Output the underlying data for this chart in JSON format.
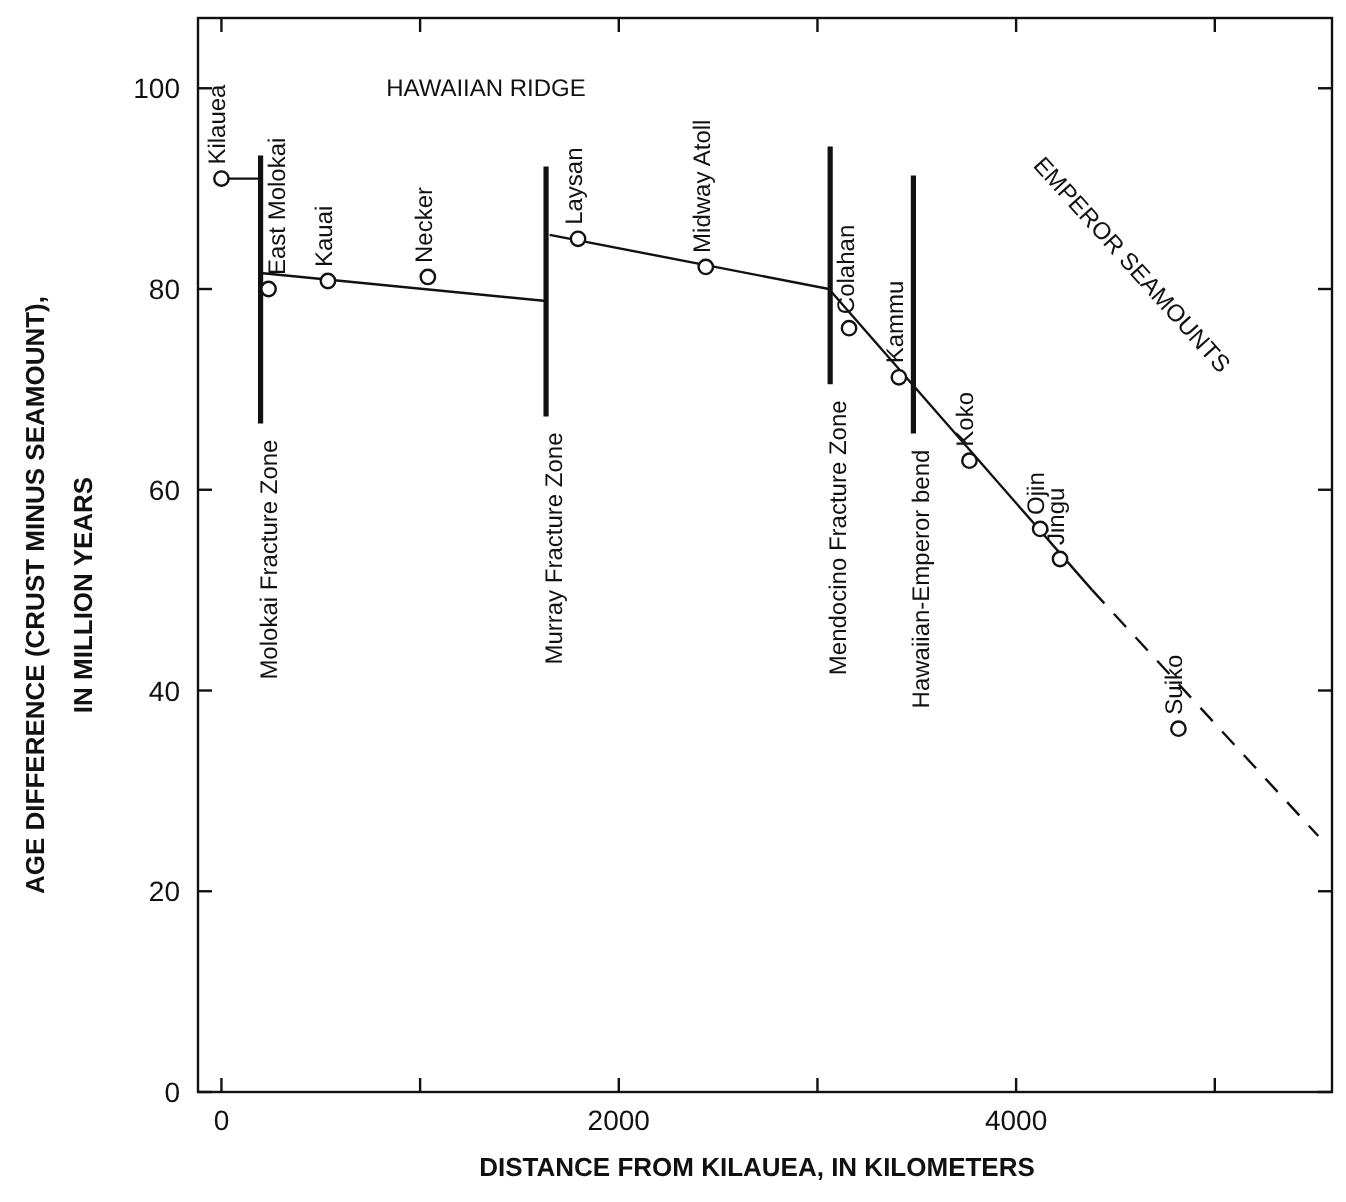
{
  "chart_data": {
    "type": "scatter",
    "xlabel": "DISTANCE FROM KILAUEA, IN KILOMETERS",
    "ylabel": "AGE DIFFERENCE (CRUST MINUS SEAMOUNT),\nIN MILLION YEARS",
    "xlim": [
      -118,
      5590
    ],
    "ylim": [
      0,
      107
    ],
    "xticks": [
      0,
      {
        "value": 1000,
        "label": null
      },
      2000,
      {
        "value": 3000,
        "label": null
      },
      4000,
      {
        "value": 5000,
        "label": null
      }
    ],
    "yticks": [
      0,
      20,
      40,
      60,
      80,
      100
    ],
    "grid": false,
    "series": [
      {
        "type": "line",
        "color": "#111111",
        "x": [
          0,
          197
        ],
        "values": [
          91,
          91
        ]
      },
      {
        "type": "line",
        "color": "#111111",
        "x": [
          197,
          1634
        ],
        "values": [
          81.6,
          78.8
        ]
      },
      {
        "type": "line",
        "color": "#111111",
        "x": [
          1652,
          3058
        ],
        "values": [
          85.4,
          80.0
        ]
      },
      {
        "type": "line",
        "color": "#111111",
        "x": [
          3058,
          4383
        ],
        "values": [
          80.0,
          50.0
        ]
      },
      {
        "type": "line",
        "color": "#111111",
        "x": [
          4383,
          5521
        ],
        "values": [
          50.0,
          25.5
        ],
        "line_style": "dashed"
      },
      {
        "type": "line",
        "color": "#111111",
        "x": [
          197,
          197
        ],
        "values": [
          93.3,
          66.6
        ]
      },
      {
        "type": "line",
        "color": "#111111",
        "x": [
          1634,
          1634
        ],
        "values": [
          92.2,
          67.3
        ]
      },
      {
        "type": "line",
        "color": "#111111",
        "x": [
          3064,
          3064
        ],
        "values": [
          94.2,
          70.5
        ]
      },
      {
        "type": "line",
        "color": "#111111",
        "x": [
          3483,
          3483
        ],
        "values": [
          91.3,
          65.6
        ]
      },
      {
        "color": "#111111",
        "marker": "circle",
        "x": [
          0,
          237,
          536,
          1039,
          1795,
          2438,
          3159,
          3410,
          3765,
          4121,
          4221,
          4817
        ],
        "values": [
          91,
          80.0,
          80.8,
          81.2,
          85.0,
          82.2,
          76.1,
          71.2,
          62.9,
          56.1,
          53.1,
          36.2
        ]
      }
    ],
    "annotations": [
      "HAWAIIAN RIDGE",
      "EMPEROR SEAMOUNTS",
      "Molokai Fracture Zone",
      "Murray Fracture Zone",
      "Mendocino Fracture Zone",
      "Hawaiian-Emperor bend",
      {
        "text": "Kilauea",
        "x": 0,
        "y": 91
      },
      {
        "text": "East Molokai",
        "x": 237,
        "y": 80.0
      },
      {
        "text": "Kauai",
        "x": 536,
        "y": 80.8
      },
      {
        "text": "Necker",
        "x": 1039,
        "y": 81.2
      },
      {
        "text": "Laysan",
        "x": 1795,
        "y": 85.0
      },
      {
        "text": "Midway Atoll",
        "x": 2438,
        "y": 82.2
      },
      {
        "text": "Colahan",
        "x": 3159,
        "y": 76.1
      },
      {
        "text": "Kammu",
        "x": 3410,
        "y": 71.2
      },
      {
        "text": "Koko",
        "x": 3765,
        "y": 62.9
      },
      {
        "text": "Ojin",
        "x": 4121,
        "y": 56.1
      },
      {
        "text": "Jingu",
        "x": 4221,
        "y": 53.1
      },
      {
        "text": "Suiko",
        "x": 4817,
        "y": 36.2
      }
    ]
  }
}
